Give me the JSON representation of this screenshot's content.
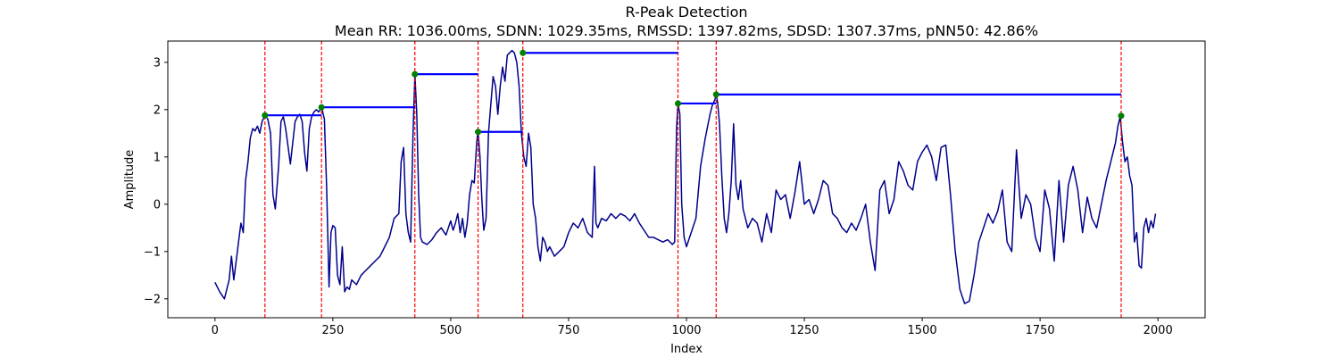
{
  "chart_data": {
    "type": "line",
    "title": "R-Peak Detection",
    "subtitle": "Mean RR: 1036.00ms, SDNN: 1029.35ms, RMSSD: 1397.82ms, SDSD: 1307.37ms, pNN50: 42.86%",
    "xlabel": "Index",
    "ylabel": "Amplitude",
    "xlim": [
      -100,
      2100
    ],
    "ylim": [
      -2.4,
      3.45
    ],
    "xticks": [
      0,
      250,
      500,
      750,
      1000,
      1250,
      1500,
      1750,
      2000
    ],
    "yticks": [
      -2,
      -1,
      0,
      1,
      2,
      3
    ],
    "ytick_labels": [
      "−2",
      "−1",
      "0",
      "1",
      "2",
      "3"
    ],
    "grid": false,
    "colors": {
      "signal": "#00008b",
      "peak_line": "#ff0000",
      "peak_marker": "#008000",
      "rr_segment": "#0000ff"
    },
    "signal": {
      "x": [
        0,
        10,
        20,
        30,
        35,
        40,
        45,
        50,
        55,
        60,
        65,
        70,
        75,
        80,
        85,
        90,
        95,
        100,
        106,
        112,
        118,
        123,
        128,
        135,
        140,
        145,
        150,
        160,
        170,
        175,
        180,
        185,
        190,
        195,
        200,
        205,
        210,
        215,
        220,
        226,
        232,
        237,
        242,
        246,
        250,
        255,
        260,
        265,
        270,
        275,
        280,
        285,
        290,
        300,
        310,
        320,
        330,
        340,
        350,
        360,
        370,
        380,
        390,
        395,
        400,
        405,
        410,
        415,
        420,
        424,
        428,
        432,
        436,
        440,
        450,
        460,
        470,
        480,
        490,
        500,
        505,
        510,
        515,
        520,
        525,
        530,
        535,
        540,
        545,
        550,
        555,
        558,
        562,
        566,
        570,
        575,
        580,
        585,
        590,
        595,
        600,
        605,
        610,
        615,
        620,
        625,
        630,
        635,
        640,
        645,
        650,
        655,
        660,
        665,
        670,
        675,
        680,
        685,
        690,
        695,
        700,
        705,
        710,
        720,
        730,
        740,
        750,
        760,
        770,
        780,
        790,
        800,
        805,
        808,
        812,
        820,
        830,
        840,
        850,
        860,
        870,
        880,
        890,
        900,
        910,
        920,
        930,
        940,
        950,
        960,
        970,
        975,
        979,
        982,
        986,
        990,
        995,
        1000,
        1010,
        1020,
        1030,
        1040,
        1050,
        1055,
        1060,
        1063,
        1066,
        1070,
        1075,
        1080,
        1085,
        1090,
        1095,
        1100,
        1105,
        1110,
        1115,
        1120,
        1130,
        1140,
        1150,
        1160,
        1170,
        1180,
        1190,
        1200,
        1210,
        1220,
        1230,
        1240,
        1250,
        1260,
        1270,
        1280,
        1290,
        1300,
        1310,
        1320,
        1330,
        1340,
        1350,
        1360,
        1370,
        1380,
        1390,
        1400,
        1410,
        1420,
        1430,
        1440,
        1450,
        1460,
        1470,
        1480,
        1490,
        1500,
        1510,
        1520,
        1530,
        1540,
        1550,
        1560,
        1570,
        1580,
        1590,
        1600,
        1610,
        1620,
        1630,
        1640,
        1650,
        1660,
        1670,
        1680,
        1690,
        1700,
        1710,
        1720,
        1730,
        1740,
        1750,
        1760,
        1770,
        1780,
        1790,
        1800,
        1810,
        1820,
        1830,
        1840,
        1850,
        1860,
        1870,
        1880,
        1890,
        1900,
        1910,
        1915,
        1920,
        1925,
        1930,
        1935,
        1940,
        1945,
        1950,
        1955,
        1960,
        1965,
        1970,
        1975,
        1980,
        1985,
        1990,
        1995
      ],
      "y": [
        -1.65,
        -1.85,
        -2.0,
        -1.6,
        -1.1,
        -1.6,
        -1.2,
        -0.8,
        -0.4,
        -0.6,
        0.5,
        0.9,
        1.4,
        1.6,
        1.55,
        1.65,
        1.5,
        1.75,
        1.88,
        1.8,
        1.5,
        0.2,
        -0.1,
        0.8,
        1.75,
        1.85,
        1.6,
        0.85,
        1.75,
        1.85,
        1.9,
        1.75,
        1.1,
        0.7,
        1.6,
        1.85,
        1.95,
        2.0,
        1.95,
        2.05,
        1.8,
        0.3,
        -1.75,
        -0.6,
        -0.45,
        -0.5,
        -1.5,
        -1.7,
        -0.9,
        -1.85,
        -1.75,
        -1.8,
        -1.6,
        -1.7,
        -1.5,
        -1.4,
        -1.3,
        -1.2,
        -1.1,
        -0.9,
        -0.7,
        -0.3,
        -0.2,
        0.9,
        1.2,
        -0.2,
        -0.6,
        -0.8,
        1.5,
        2.75,
        1.9,
        0.2,
        -0.7,
        -0.8,
        -0.85,
        -0.75,
        -0.6,
        -0.5,
        -0.65,
        -0.35,
        -0.55,
        -0.4,
        -0.2,
        -0.6,
        -0.3,
        -0.7,
        -0.4,
        0.2,
        0.5,
        0.45,
        1.3,
        1.55,
        1.0,
        0.1,
        -0.55,
        -0.3,
        1.5,
        2.1,
        2.7,
        2.5,
        1.9,
        2.5,
        2.9,
        2.6,
        3.15,
        3.2,
        3.25,
        3.2,
        3.0,
        2.5,
        1.5,
        1.0,
        0.8,
        1.5,
        1.2,
        0.0,
        -0.3,
        -0.9,
        -1.2,
        -0.7,
        -0.8,
        -1.0,
        -0.9,
        -1.1,
        -1.0,
        -0.9,
        -0.6,
        -0.4,
        -0.5,
        -0.3,
        -0.6,
        -0.7,
        0.8,
        -0.4,
        -0.5,
        -0.3,
        -0.35,
        -0.2,
        -0.3,
        -0.2,
        -0.25,
        -0.35,
        -0.2,
        -0.4,
        -0.55,
        -0.7,
        -0.7,
        -0.75,
        -0.8,
        -0.75,
        -0.85,
        -0.8,
        1.6,
        2.13,
        1.9,
        0.0,
        -0.7,
        -0.9,
        -0.6,
        -0.3,
        0.8,
        1.4,
        1.9,
        2.1,
        2.2,
        2.32,
        2.15,
        1.7,
        0.6,
        -0.3,
        -0.6,
        -0.2,
        0.5,
        1.7,
        0.4,
        0.1,
        0.5,
        -0.1,
        -0.5,
        -0.3,
        -0.4,
        -0.8,
        -0.2,
        -0.6,
        0.3,
        0.1,
        0.2,
        -0.3,
        0.25,
        0.9,
        0.0,
        0.1,
        -0.2,
        0.1,
        0.5,
        0.4,
        -0.2,
        -0.3,
        -0.5,
        -0.6,
        -0.4,
        -0.55,
        -0.3,
        0.0,
        -0.8,
        -1.4,
        0.3,
        0.5,
        -0.2,
        0.1,
        0.9,
        0.7,
        0.4,
        0.3,
        0.9,
        1.1,
        1.25,
        1.0,
        0.5,
        1.2,
        1.25,
        0.2,
        -1.0,
        -1.8,
        -2.1,
        -2.05,
        -1.5,
        -0.8,
        -0.5,
        -0.2,
        -0.4,
        -0.15,
        0.3,
        -0.8,
        -1.0,
        1.15,
        -0.3,
        0.2,
        0.0,
        -0.7,
        -1.0,
        0.3,
        -0.1,
        -1.2,
        0.5,
        -0.8,
        0.4,
        0.8,
        0.3,
        -0.6,
        0.15,
        -0.3,
        -0.5,
        0.0,
        0.5,
        0.9,
        1.3,
        1.65,
        1.85,
        1.3,
        0.9,
        1.0,
        0.6,
        0.4,
        -0.8,
        -0.6,
        -1.3,
        -1.35,
        -0.5,
        -0.3,
        -0.6,
        -0.35,
        -0.5,
        -0.2
      ]
    },
    "peaks": {
      "x": [
        106,
        226,
        424,
        558,
        653,
        982,
        1063,
        1922
      ],
      "y": [
        1.88,
        2.05,
        2.75,
        1.53,
        3.2,
        2.13,
        2.32,
        1.87
      ]
    }
  }
}
